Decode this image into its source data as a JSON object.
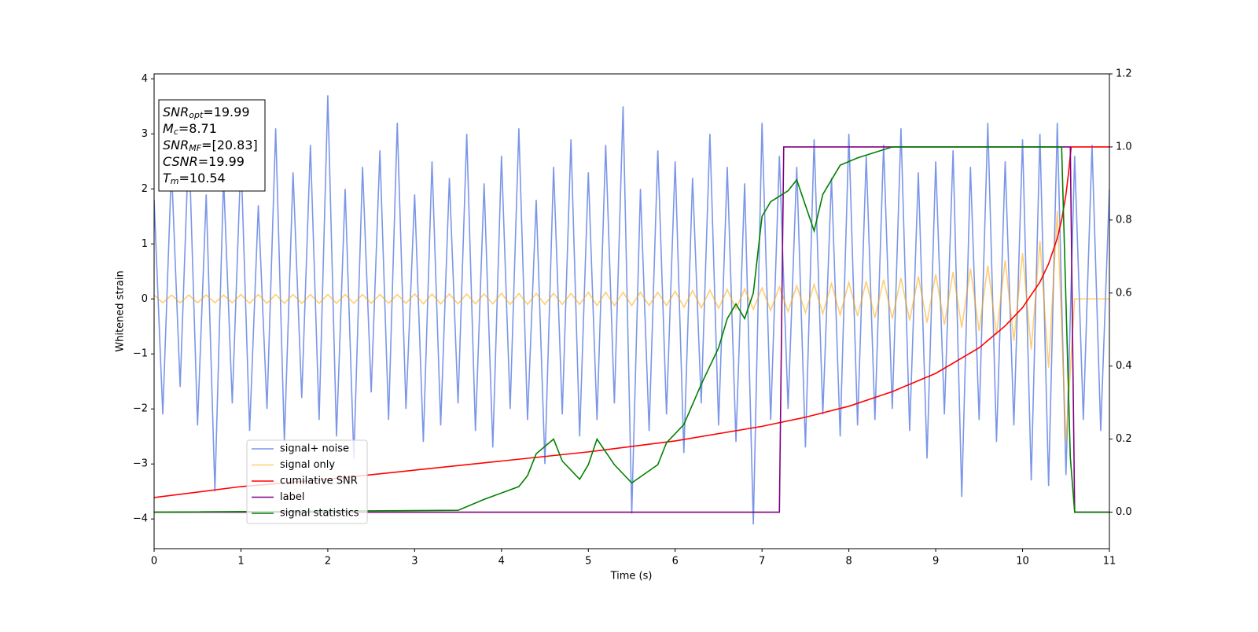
{
  "chart_data": {
    "type": "line",
    "xlabel": "Time (s)",
    "ylabel": "Whitened strain",
    "xlim": [
      0,
      11
    ],
    "xticks": [
      0,
      1,
      2,
      3,
      4,
      5,
      6,
      7,
      8,
      9,
      10,
      11
    ],
    "ylim": [
      -4.54,
      4.09
    ],
    "yticks": [
      {
        "value": -4,
        "label": "−4"
      },
      {
        "value": -3,
        "label": "−3"
      },
      {
        "value": -2,
        "label": "−2"
      },
      {
        "value": -1,
        "label": "−1"
      },
      0,
      1,
      2,
      3,
      4
    ],
    "y2lim": [
      -0.1,
      1.2
    ],
    "y2ticks": [
      {
        "value": 0,
        "label": "0.0"
      },
      0.2,
      0.4,
      0.6,
      0.8,
      {
        "value": 1,
        "label": "1.0"
      },
      1.2
    ],
    "legend": "lower left",
    "x": [
      0,
      0.1,
      0.2,
      0.3,
      0.4,
      0.5,
      0.6,
      0.7,
      0.8,
      0.9,
      1,
      1.1,
      1.2,
      1.3,
      1.4,
      1.5,
      1.6,
      1.7,
      1.8,
      1.9,
      2,
      2.1,
      2.2,
      2.3,
      2.4,
      2.5,
      2.6,
      2.7,
      2.8,
      2.9,
      3,
      3.1,
      3.2,
      3.3,
      3.4,
      3.5,
      3.6,
      3.7,
      3.8,
      3.9,
      4,
      4.1,
      4.2,
      4.3,
      4.4,
      4.5,
      4.6,
      4.7,
      4.8,
      4.9,
      5,
      5.1,
      5.2,
      5.3,
      5.4,
      5.5,
      5.6,
      5.7,
      5.8,
      5.9,
      6,
      6.1,
      6.2,
      6.3,
      6.4,
      6.5,
      6.6,
      6.7,
      6.8,
      6.9,
      7,
      7.1,
      7.2,
      7.3,
      7.4,
      7.5,
      7.6,
      7.7,
      7.8,
      7.9,
      8,
      8.1,
      8.2,
      8.3,
      8.4,
      8.5,
      8.6,
      8.7,
      8.8,
      8.9,
      9,
      9.1,
      9.2,
      9.3,
      9.4,
      9.5,
      9.6,
      9.7,
      9.8,
      9.9,
      10,
      10.1,
      10.2,
      10.3,
      10.4,
      10.5,
      10.6,
      10.7,
      10.8,
      10.9,
      11
    ],
    "series": [
      {
        "name": "signal+ noise",
        "color": "#7b96e8",
        "values": [
          1.8,
          -2.1,
          2.4,
          -1.6,
          2.9,
          -2.3,
          1.9,
          -3.5,
          2.2,
          -1.9,
          2.6,
          -2.4,
          1.7,
          -2.0,
          3.1,
          -2.6,
          2.3,
          -1.8,
          2.8,
          -2.2,
          3.7,
          -2.5,
          2.0,
          -2.9,
          2.4,
          -1.7,
          2.7,
          -2.2,
          3.2,
          -2.0,
          1.9,
          -2.6,
          2.5,
          -2.3,
          2.2,
          -1.9,
          3.0,
          -2.4,
          2.1,
          -2.7,
          2.6,
          -2.0,
          3.1,
          -2.2,
          1.8,
          -3.0,
          2.4,
          -2.1,
          2.9,
          -2.5,
          2.3,
          -2.2,
          2.8,
          -1.9,
          3.5,
          -3.9,
          2.0,
          -2.4,
          2.7,
          -2.1,
          2.5,
          -2.8,
          2.2,
          -1.9,
          3.0,
          -2.3,
          2.4,
          -2.6,
          2.1,
          -4.1,
          3.2,
          -2.2,
          2.6,
          -2.0,
          2.4,
          -2.7,
          2.9,
          -2.1,
          2.2,
          -2.5,
          3.0,
          -2.3,
          2.6,
          -2.2,
          2.8,
          -2.0,
          3.1,
          -2.4,
          2.3,
          -2.9,
          2.5,
          -2.1,
          2.7,
          -3.6,
          2.4,
          -2.2,
          3.2,
          -2.6,
          2.5,
          -2.3,
          2.9,
          -3.3,
          3.0,
          -3.4,
          3.2,
          -3.2,
          2.6,
          -2.2,
          2.8,
          -2.4,
          2.0
        ]
      },
      {
        "name": "signal only",
        "color": "#ffa500",
        "values": [
          0.07,
          -0.07,
          0.07,
          -0.07,
          0.07,
          -0.07,
          0.07,
          -0.07,
          0.07,
          -0.07,
          0.08,
          -0.08,
          0.08,
          -0.08,
          0.08,
          -0.08,
          0.08,
          -0.08,
          0.08,
          -0.08,
          0.08,
          -0.08,
          0.08,
          -0.08,
          0.08,
          -0.08,
          0.08,
          -0.08,
          0.08,
          -0.08,
          0.09,
          -0.09,
          0.09,
          -0.09,
          0.09,
          -0.09,
          0.09,
          -0.09,
          0.09,
          -0.09,
          0.1,
          -0.1,
          0.1,
          -0.1,
          0.1,
          -0.1,
          0.1,
          -0.1,
          0.1,
          -0.1,
          0.12,
          -0.12,
          0.12,
          -0.12,
          0.12,
          -0.12,
          0.12,
          -0.12,
          0.12,
          -0.12,
          0.14,
          -0.15,
          0.15,
          -0.16,
          0.16,
          -0.17,
          0.17,
          -0.18,
          0.18,
          -0.19,
          0.2,
          -0.21,
          0.22,
          -0.23,
          0.24,
          -0.25,
          0.26,
          -0.27,
          0.28,
          -0.29,
          0.3,
          -0.31,
          0.32,
          -0.34,
          0.35,
          -0.36,
          0.38,
          -0.39,
          0.41,
          -0.43,
          0.45,
          -0.47,
          0.49,
          -0.52,
          0.55,
          -0.58,
          0.61,
          -0.65,
          0.7,
          -0.76,
          0.83,
          -0.92,
          1.05,
          -1.25,
          1.6,
          -2.6,
          0,
          0,
          0,
          0,
          0
        ]
      },
      {
        "name": "cumilative SNR",
        "color": "#ff0000",
        "axis": "y2",
        "x": [
          0,
          1,
          2,
          3,
          4,
          5,
          6,
          7,
          7.5,
          8,
          8.5,
          9,
          9.5,
          9.8,
          10,
          10.2,
          10.3,
          10.4,
          10.45,
          10.5,
          10.53,
          10.56,
          11
        ],
        "values": [
          0.04,
          0.07,
          0.09,
          0.115,
          0.14,
          0.165,
          0.195,
          0.235,
          0.26,
          0.29,
          0.33,
          0.38,
          0.45,
          0.51,
          0.56,
          0.63,
          0.68,
          0.75,
          0.8,
          0.87,
          0.93,
          1.0,
          1.0
        ]
      },
      {
        "name": "label",
        "color": "#800080",
        "axis": "y2",
        "x": [
          0,
          7.2,
          7.25,
          10.55,
          10.6,
          11
        ],
        "values": [
          0,
          0,
          1,
          1,
          0,
          0
        ]
      },
      {
        "name": "signal statistics",
        "color": "#008000",
        "axis": "y2",
        "x": [
          0,
          3.5,
          3.8,
          4.2,
          4.3,
          4.4,
          4.6,
          4.7,
          4.9,
          5.0,
          5.1,
          5.3,
          5.5,
          5.8,
          5.9,
          6.1,
          6.3,
          6.5,
          6.6,
          6.7,
          6.8,
          6.9,
          7.0,
          7.1,
          7.3,
          7.4,
          7.6,
          7.7,
          7.9,
          8.1,
          8.5,
          9.0,
          10.0,
          10.45,
          10.55,
          10.6,
          11
        ],
        "values": [
          0,
          0.005,
          0.035,
          0.07,
          0.1,
          0.16,
          0.2,
          0.14,
          0.09,
          0.13,
          0.2,
          0.13,
          0.08,
          0.13,
          0.19,
          0.24,
          0.35,
          0.45,
          0.53,
          0.57,
          0.53,
          0.6,
          0.81,
          0.85,
          0.88,
          0.91,
          0.77,
          0.87,
          0.95,
          0.97,
          1.0,
          1.0,
          1.0,
          1.0,
          0.15,
          0,
          0
        ]
      }
    ],
    "annotations": [
      {
        "name": "SNR",
        "sub": "opt",
        "value": "=19.99"
      },
      {
        "name": "M",
        "sub": "c",
        "value": "=8.71"
      },
      {
        "name": "SNR",
        "sub": "MF",
        "value": "=[20.83]"
      },
      {
        "name": "CSNR",
        "value": "=19.99"
      },
      {
        "name": "T",
        "sub": "m",
        "value": "=10.54"
      }
    ]
  }
}
